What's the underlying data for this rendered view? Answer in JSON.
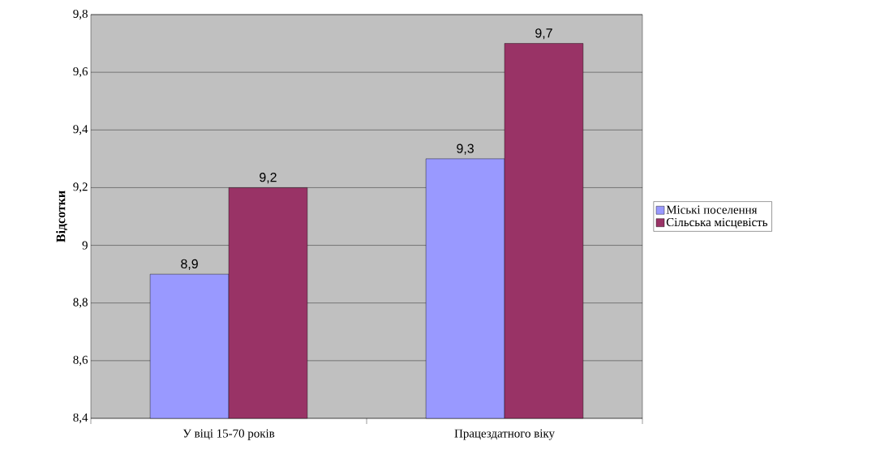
{
  "chart_data": {
    "type": "bar",
    "ylabel": "Відсотки",
    "categories": [
      "У віці 15-70 років",
      "Працездатного віку"
    ],
    "series": [
      {
        "name": "Міські поселення",
        "color": "#9999ff",
        "values": [
          8.9,
          9.3
        ],
        "value_labels": [
          "8,9",
          "9,3"
        ]
      },
      {
        "name": "Сільська місцевість",
        "color": "#993366",
        "values": [
          9.2,
          9.7
        ],
        "value_labels": [
          "9,2",
          "9,7"
        ]
      }
    ],
    "ylim": [
      8.4,
      9.8
    ],
    "yticks": [
      {
        "value": 8.4,
        "label": "8,4"
      },
      {
        "value": 8.6,
        "label": "8,6"
      },
      {
        "value": 8.8,
        "label": "8,8"
      },
      9,
      {
        "value": 9.2,
        "label": "9,2"
      },
      {
        "value": 9.4,
        "label": "9,4"
      },
      {
        "value": 9.6,
        "label": "9,6"
      },
      {
        "value": 9.8,
        "label": "9,8"
      }
    ],
    "grid": "y",
    "legend": "right"
  }
}
